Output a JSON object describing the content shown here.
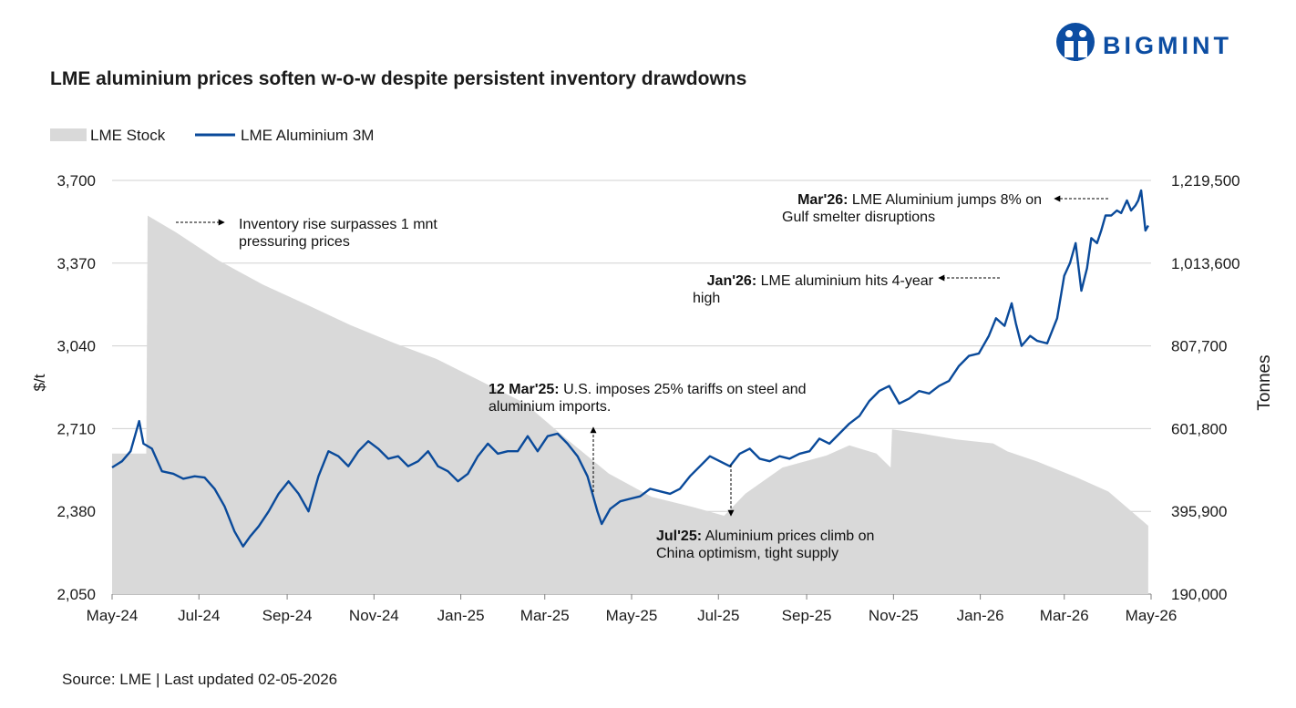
{
  "header": {
    "title": "LME aluminium prices soften w-o-w despite persistent inventory drawdowns",
    "logo_text": "BIGMINT"
  },
  "footer": {
    "source": "Source: LME | Last updated 02-05-2026"
  },
  "colors": {
    "price_line": "#0a4a9a",
    "stock_area": "#d9d9d9",
    "grid": "#d0d0d0",
    "logo_blue": "#0c4da2"
  },
  "chart_data": {
    "type": "line",
    "legend_position": "top-left",
    "grid": true,
    "y_left": {
      "label": "$/t",
      "min": 2050,
      "max": 3700,
      "ticks": [
        2050,
        2380,
        2710,
        3040,
        3370,
        3700
      ],
      "tick_labels": [
        "2,050",
        "2,380",
        "2,710",
        "3,040",
        "3,370",
        "3,700"
      ]
    },
    "y_right": {
      "label": "Tonnes",
      "min": 190000,
      "max": 1219500,
      "ticks": [
        190000,
        395900,
        601800,
        807700,
        1013600,
        1219500
      ],
      "tick_labels": [
        "190,000",
        "395,900",
        "601,800",
        "807,700",
        "1,013,600",
        "1,219,500"
      ]
    },
    "x_axis": {
      "tick_dates": [
        "2024-05-01",
        "2024-07-01",
        "2024-09-01",
        "2024-11-01",
        "2025-01-01",
        "2025-03-01",
        "2025-05-01",
        "2025-07-01",
        "2025-09-01",
        "2025-11-01",
        "2026-01-01",
        "2026-03-01",
        "2026-05-01"
      ],
      "tick_labels": [
        "May-24",
        "Jul-24",
        "Sep-24",
        "Nov-24",
        "Jan-25",
        "Mar-25",
        "May-25",
        "Jul-25",
        "Sep-25",
        "Nov-25",
        "Jan-26",
        "Mar-26",
        "May-26"
      ]
    },
    "series": [
      {
        "name": "LME Stock",
        "kind": "area",
        "axis": "right",
        "points": [
          [
            "2024-05-01",
            540000
          ],
          [
            "2024-05-25",
            540000
          ],
          [
            "2024-05-26",
            1132000
          ],
          [
            "2024-06-15",
            1090000
          ],
          [
            "2024-07-15",
            1020000
          ],
          [
            "2024-08-15",
            960000
          ],
          [
            "2024-09-15",
            910000
          ],
          [
            "2024-10-15",
            860000
          ],
          [
            "2024-11-15",
            815000
          ],
          [
            "2024-12-15",
            775000
          ],
          [
            "2025-01-15",
            720000
          ],
          [
            "2025-02-15",
            665000
          ],
          [
            "2025-03-15",
            580000
          ],
          [
            "2025-04-15",
            490000
          ],
          [
            "2025-05-15",
            432000
          ],
          [
            "2025-06-15",
            405000
          ],
          [
            "2025-07-05",
            385000
          ],
          [
            "2025-07-20",
            440000
          ],
          [
            "2025-08-15",
            505000
          ],
          [
            "2025-09-15",
            535000
          ],
          [
            "2025-10-01",
            560000
          ],
          [
            "2025-10-20",
            540000
          ],
          [
            "2025-10-30",
            505000
          ],
          [
            "2025-10-31",
            600000
          ],
          [
            "2025-11-20",
            590000
          ],
          [
            "2025-12-15",
            575000
          ],
          [
            "2026-01-10",
            565000
          ],
          [
            "2026-01-20",
            545000
          ],
          [
            "2026-02-10",
            520000
          ],
          [
            "2026-03-10",
            480000
          ],
          [
            "2026-04-01",
            445000
          ],
          [
            "2026-04-29",
            360000
          ]
        ]
      },
      {
        "name": "LME Aluminium 3M",
        "kind": "line",
        "axis": "left",
        "points": [
          [
            "2024-05-01",
            2555
          ],
          [
            "2024-05-08",
            2580
          ],
          [
            "2024-05-14",
            2620
          ],
          [
            "2024-05-20",
            2740
          ],
          [
            "2024-05-23",
            2650
          ],
          [
            "2024-05-29",
            2630
          ],
          [
            "2024-06-05",
            2540
          ],
          [
            "2024-06-13",
            2530
          ],
          [
            "2024-06-20",
            2510
          ],
          [
            "2024-06-28",
            2520
          ],
          [
            "2024-07-05",
            2515
          ],
          [
            "2024-07-12",
            2470
          ],
          [
            "2024-07-19",
            2400
          ],
          [
            "2024-07-26",
            2300
          ],
          [
            "2024-08-01",
            2240
          ],
          [
            "2024-08-06",
            2280
          ],
          [
            "2024-08-12",
            2320
          ],
          [
            "2024-08-19",
            2380
          ],
          [
            "2024-08-26",
            2450
          ],
          [
            "2024-09-02",
            2500
          ],
          [
            "2024-09-09",
            2450
          ],
          [
            "2024-09-16",
            2380
          ],
          [
            "2024-09-23",
            2520
          ],
          [
            "2024-09-30",
            2620
          ],
          [
            "2024-10-07",
            2600
          ],
          [
            "2024-10-14",
            2560
          ],
          [
            "2024-10-21",
            2620
          ],
          [
            "2024-10-28",
            2660
          ],
          [
            "2024-11-04",
            2630
          ],
          [
            "2024-11-11",
            2590
          ],
          [
            "2024-11-18",
            2600
          ],
          [
            "2024-11-25",
            2560
          ],
          [
            "2024-12-02",
            2580
          ],
          [
            "2024-12-09",
            2620
          ],
          [
            "2024-12-16",
            2560
          ],
          [
            "2024-12-23",
            2540
          ],
          [
            "2024-12-30",
            2500
          ],
          [
            "2025-01-06",
            2530
          ],
          [
            "2025-01-13",
            2600
          ],
          [
            "2025-01-20",
            2650
          ],
          [
            "2025-01-27",
            2610
          ],
          [
            "2025-02-03",
            2620
          ],
          [
            "2025-02-10",
            2620
          ],
          [
            "2025-02-17",
            2680
          ],
          [
            "2025-02-24",
            2620
          ],
          [
            "2025-03-03",
            2680
          ],
          [
            "2025-03-10",
            2690
          ],
          [
            "2025-03-17",
            2650
          ],
          [
            "2025-03-24",
            2600
          ],
          [
            "2025-03-31",
            2520
          ],
          [
            "2025-04-07",
            2380
          ],
          [
            "2025-04-10",
            2330
          ],
          [
            "2025-04-16",
            2390
          ],
          [
            "2025-04-23",
            2420
          ],
          [
            "2025-04-30",
            2430
          ],
          [
            "2025-05-07",
            2440
          ],
          [
            "2025-05-14",
            2470
          ],
          [
            "2025-05-21",
            2460
          ],
          [
            "2025-05-28",
            2450
          ],
          [
            "2025-06-04",
            2470
          ],
          [
            "2025-06-11",
            2520
          ],
          [
            "2025-06-18",
            2560
          ],
          [
            "2025-06-25",
            2600
          ],
          [
            "2025-07-02",
            2580
          ],
          [
            "2025-07-09",
            2560
          ],
          [
            "2025-07-16",
            2610
          ],
          [
            "2025-07-23",
            2630
          ],
          [
            "2025-07-30",
            2590
          ],
          [
            "2025-08-06",
            2580
          ],
          [
            "2025-08-13",
            2600
          ],
          [
            "2025-08-20",
            2590
          ],
          [
            "2025-08-27",
            2610
          ],
          [
            "2025-09-03",
            2620
          ],
          [
            "2025-09-10",
            2670
          ],
          [
            "2025-09-17",
            2650
          ],
          [
            "2025-09-24",
            2690
          ],
          [
            "2025-10-01",
            2730
          ],
          [
            "2025-10-08",
            2760
          ],
          [
            "2025-10-15",
            2820
          ],
          [
            "2025-10-22",
            2860
          ],
          [
            "2025-10-29",
            2880
          ],
          [
            "2025-11-05",
            2810
          ],
          [
            "2025-11-12",
            2830
          ],
          [
            "2025-11-19",
            2860
          ],
          [
            "2025-11-26",
            2850
          ],
          [
            "2025-12-03",
            2880
          ],
          [
            "2025-12-10",
            2900
          ],
          [
            "2025-12-17",
            2960
          ],
          [
            "2025-12-24",
            3000
          ],
          [
            "2025-12-31",
            3010
          ],
          [
            "2026-01-07",
            3080
          ],
          [
            "2026-01-12",
            3150
          ],
          [
            "2026-01-18",
            3120
          ],
          [
            "2026-01-23",
            3210
          ],
          [
            "2026-01-26",
            3130
          ],
          [
            "2026-01-30",
            3040
          ],
          [
            "2026-02-05",
            3080
          ],
          [
            "2026-02-10",
            3060
          ],
          [
            "2026-02-17",
            3050
          ],
          [
            "2026-02-24",
            3150
          ],
          [
            "2026-03-01",
            3320
          ],
          [
            "2026-03-05",
            3370
          ],
          [
            "2026-03-09",
            3450
          ],
          [
            "2026-03-13",
            3260
          ],
          [
            "2026-03-17",
            3350
          ],
          [
            "2026-03-20",
            3470
          ],
          [
            "2026-03-24",
            3450
          ],
          [
            "2026-03-27",
            3500
          ],
          [
            "2026-03-30",
            3560
          ],
          [
            "2026-04-03",
            3560
          ],
          [
            "2026-04-07",
            3580
          ],
          [
            "2026-04-10",
            3570
          ],
          [
            "2026-04-14",
            3620
          ],
          [
            "2026-04-17",
            3580
          ],
          [
            "2026-04-20",
            3600
          ],
          [
            "2026-04-22",
            3620
          ],
          [
            "2026-04-24",
            3660
          ],
          [
            "2026-04-27",
            3500
          ],
          [
            "2026-04-29",
            3520
          ]
        ]
      }
    ],
    "annotations": [
      {
        "bold": "",
        "text": "Inventory rise surpasses 1 mnt",
        "text2": "pressuring prices",
        "date": "2024-06-08",
        "value": 1128000,
        "axis": "right"
      },
      {
        "bold": "12 Mar'25:",
        "text": " U.S. imposes 25% tariffs on steel and",
        "text2": "aluminium imports.",
        "date": "2025-03-12",
        "value": 2450,
        "axis": "left"
      },
      {
        "bold": "Jul'25:",
        "text": " Aluminium prices climb on",
        "text2": "China optimism, tight supply",
        "date": "2025-07-06",
        "value": 2560,
        "axis": "left"
      },
      {
        "bold": "Jan'26:",
        "text": " LME aluminium hits 4-year",
        "text2": "high",
        "date": "2026-01-10",
        "value": 3200,
        "axis": "left"
      },
      {
        "bold": "Mar'26:",
        "text": " LME Aluminium jumps 8% on",
        "text2": "Gulf smelter disruptions",
        "date": "2026-04-12",
        "value": 3600,
        "axis": "left"
      }
    ]
  }
}
